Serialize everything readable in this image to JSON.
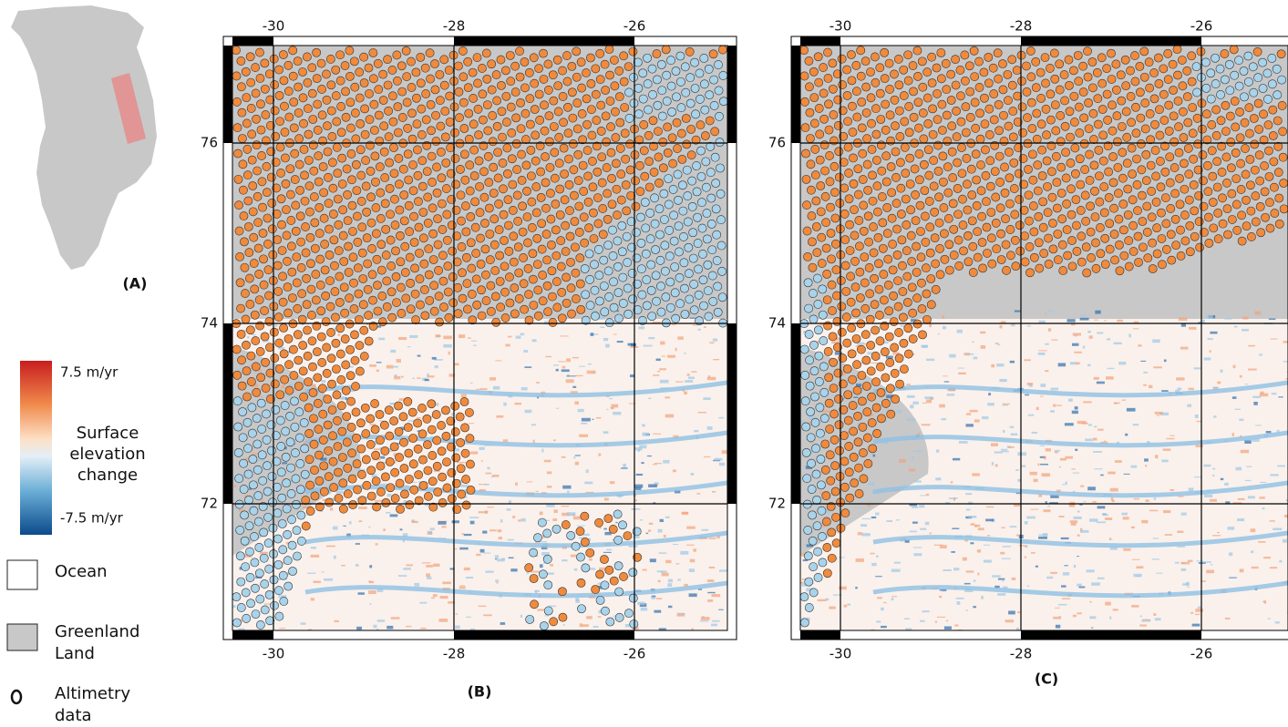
{
  "panel_a": {
    "label": "(A)"
  },
  "legend": {
    "colorbar_max": "7.5 m/yr",
    "colorbar_title": [
      "Surface",
      "elevation",
      "change"
    ],
    "colorbar_min": "-7.5 m/yr",
    "items": [
      {
        "label": [
          "Ocean"
        ]
      },
      {
        "label": [
          "Greenland",
          "Land"
        ]
      },
      {
        "label": [
          "Altimetry",
          "data"
        ]
      }
    ]
  },
  "panels": [
    {
      "label": "(B)",
      "x_ticks": [
        "-30",
        "-28",
        "-26"
      ],
      "y_ticks": [
        "76",
        "74",
        "72"
      ]
    },
    {
      "label": "(C)",
      "x_ticks": [
        "-30",
        "-28",
        "-26"
      ],
      "y_ticks": [
        "76",
        "74",
        "72"
      ]
    }
  ]
}
